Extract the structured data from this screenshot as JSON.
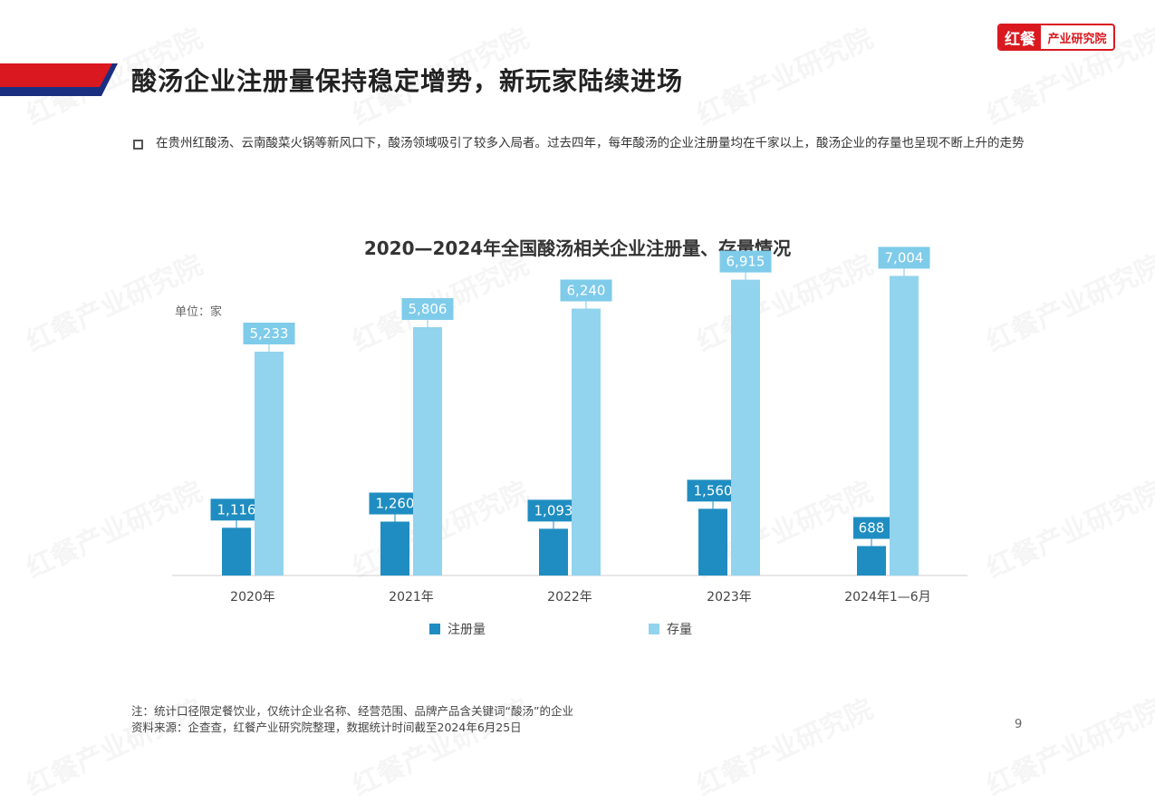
{
  "brand": {
    "logo_mark": "红餐",
    "logo_text": "产业研究院",
    "accent_red": "#d9191f",
    "accent_navy": "#1b2f80"
  },
  "page": {
    "title": "酸汤企业注册量保持稳定增势，新玩家陆续进场",
    "intro": "在贵州红酸汤、云南酸菜火锅等新风口下，酸汤领域吸引了较多入局者。过去四年，每年酸汤的企业注册量均在千家以上，酸汤企业的存量也呈现不断上升的走势",
    "page_number": "9"
  },
  "footnotes": {
    "note": "注：统计口径限定餐饮业，仅统计企业名称、经营范围、品牌产品含关键词“酸汤”的企业",
    "source": "资料来源：企查查，红餐产业研究院整理，数据统计时间截至2024年6月25日"
  },
  "watermark": "红餐产业研究院",
  "chart_data": {
    "type": "bar",
    "title": "2020—2024年全国酸汤相关企业注册量、存量情况",
    "unit_label": "单位：家",
    "categories": [
      "2020年",
      "2021年",
      "2022年",
      "2023年",
      "2024年1—6月"
    ],
    "series": [
      {
        "name": "注册量",
        "color": "#1f8dc1",
        "label_color": "#1f8dc1",
        "values": [
          1116,
          1260,
          1093,
          1560,
          688
        ]
      },
      {
        "name": "存量",
        "color": "#92d3ee",
        "label_color": "#7fcbea",
        "values": [
          5233,
          5806,
          6240,
          6915,
          7004
        ]
      }
    ],
    "data_labels": [
      [
        "1,116",
        "1,260",
        "1,093",
        "1,560",
        "688"
      ],
      [
        "5,233",
        "5,806",
        "6,240",
        "6,915",
        "7,004"
      ]
    ],
    "ylim": [
      0,
      7000
    ],
    "grid": false,
    "legend_position": "bottom"
  }
}
